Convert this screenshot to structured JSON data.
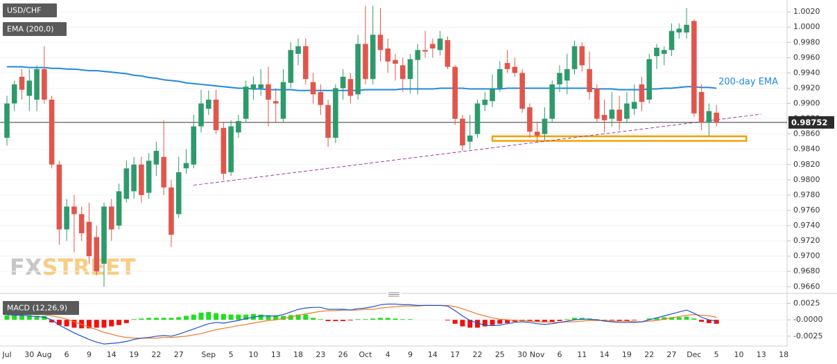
{
  "chart_data": {
    "type": "candlestick",
    "title": "USD/CHF",
    "categories": [
      "Jul",
      null,
      null,
      "30",
      null,
      "Aug",
      null,
      null,
      "6",
      null,
      null,
      "9",
      null,
      null,
      "14",
      null,
      null,
      "19",
      null,
      null,
      "22",
      null,
      null,
      "27",
      null,
      null,
      null,
      "Sep",
      null,
      null,
      "5",
      null,
      null,
      "10",
      null,
      null,
      "13",
      null,
      null,
      "18",
      null,
      null,
      "23",
      null,
      null,
      "26",
      null,
      null,
      "Oct",
      null,
      null,
      "4",
      null,
      null,
      "9",
      null,
      null,
      "14",
      null,
      null,
      "17",
      null,
      null,
      "22",
      null,
      null,
      "25",
      null,
      null,
      "30",
      null,
      "Nov",
      null,
      null,
      "6",
      null,
      null,
      "11",
      null,
      null,
      "14",
      null,
      null,
      "19",
      null,
      null,
      "22",
      null,
      null,
      "27",
      null,
      null,
      "Dec",
      null,
      null,
      "5",
      null,
      null,
      "10",
      null,
      null,
      "13",
      null,
      null,
      "18"
    ],
    "open": [
      0.9855,
      0.99,
      0.9935,
      0.991,
      0.9905,
      0.9945,
      0.9905,
      0.982,
      0.9735,
      0.9765,
      0.9755,
      0.9745,
      0.9725,
      0.969,
      0.9765,
      0.974,
      0.9775,
      0.9785,
      0.982,
      0.9783,
      0.982,
      0.983,
      0.979,
      0.9755,
      0.9815,
      0.982,
      0.987,
      0.9893,
      0.9905,
      0.9868,
      0.981,
      0.9862,
      0.988,
      0.9918,
      0.992,
      0.9925,
      0.9903,
      0.988,
      0.9927,
      0.9965,
      0.9975,
      0.9928,
      0.9915,
      0.9898,
      0.9855,
      0.992,
      0.9932,
      0.9912,
      0.9978,
      0.9932,
      0.999,
      0.9972,
      0.9957,
      0.995,
      0.9932,
      0.9957,
      0.997,
      0.9978,
      0.997,
      0.9983,
      0.9948,
      0.988,
      0.985,
      0.986,
      0.9898,
      0.9903,
      0.992,
      0.9953,
      0.9948,
      0.994,
      0.9895,
      0.9863,
      0.986,
      0.988,
      0.9925,
      0.993,
      0.9945,
      0.9975,
      0.9945,
      0.992,
      0.9885,
      0.988,
      0.9892,
      0.988,
      0.9893,
      0.9925,
      0.9905,
      0.9962,
      0.9965,
      0.997,
      0.9993,
      0.9993,
      1.0008,
      0.9915,
      0.9875,
      0.9888,
      null,
      null,
      null,
      null,
      null,
      null,
      null,
      null,
      null
    ],
    "high": [
      0.991,
      0.993,
      0.9945,
      0.9945,
      0.995,
      0.9975,
      0.991,
      0.9825,
      0.9775,
      0.978,
      0.9765,
      0.977,
      0.974,
      0.977,
      0.9775,
      0.9795,
      0.9825,
      0.983,
      0.983,
      0.9835,
      0.985,
      0.9878,
      0.98,
      0.983,
      0.984,
      0.9885,
      0.9918,
      0.9917,
      0.9918,
      0.9875,
      0.9878,
      0.9885,
      0.993,
      0.9935,
      0.9945,
      0.9948,
      0.992,
      0.9945,
      0.998,
      0.9985,
      0.9985,
      0.994,
      0.9925,
      0.9905,
      0.9925,
      0.9945,
      0.994,
      0.999,
      1.0028,
      1.0028,
      1.0025,
      0.9985,
      0.9965,
      0.996,
      0.9965,
      0.9978,
      0.9995,
      0.9985,
      0.9995,
      0.9988,
      0.995,
      0.9885,
      0.9885,
      0.9905,
      0.9915,
      0.9938,
      0.9955,
      0.997,
      0.996,
      0.9945,
      0.99,
      0.9875,
      0.9895,
      0.993,
      0.995,
      0.9965,
      0.9982,
      0.998,
      0.9968,
      0.9925,
      0.9905,
      0.9915,
      0.991,
      0.9915,
      0.9925,
      0.9935,
      0.9965,
      0.9978,
      0.9975,
      1.0005,
      1.0005,
      1.0025,
      1.001,
      0.9925,
      0.99,
      0.9898,
      null,
      null,
      null,
      null,
      null,
      null,
      null,
      null,
      null
    ],
    "low": [
      0.9845,
      0.989,
      0.9905,
      0.989,
      0.989,
      0.99,
      0.9815,
      0.9715,
      0.972,
      0.9705,
      0.972,
      0.969,
      0.9675,
      0.966,
      0.972,
      0.9735,
      0.977,
      0.9775,
      0.977,
      0.9775,
      0.9805,
      0.978,
      0.9712,
      0.975,
      0.9808,
      0.9815,
      0.9862,
      0.9885,
      0.986,
      0.98,
      0.9805,
      0.9855,
      0.9875,
      0.9905,
      0.991,
      0.987,
      0.9875,
      0.9875,
      0.992,
      0.995,
      0.9925,
      0.99,
      0.9885,
      0.9843,
      0.9848,
      0.9905,
      0.99,
      0.9905,
      0.9925,
      0.9925,
      0.9955,
      0.994,
      0.993,
      0.9915,
      0.9913,
      0.9912,
      0.996,
      0.996,
      0.9963,
      0.9945,
      0.9872,
      0.9838,
      0.984,
      0.9855,
      0.989,
      0.9895,
      0.9915,
      0.994,
      0.9935,
      0.9888,
      0.9855,
      0.985,
      0.9852,
      0.9875,
      0.9915,
      0.9912,
      0.9938,
      0.9942,
      0.9905,
      0.9875,
      0.9862,
      0.987,
      0.9865,
      0.9875,
      0.9885,
      0.989,
      0.99,
      0.9945,
      0.995,
      0.9962,
      0.9985,
      0.9985,
      0.9882,
      0.9865,
      0.9858,
      0.987,
      null,
      null,
      null,
      null,
      null,
      null,
      null,
      null,
      null
    ],
    "close": [
      0.99,
      0.9925,
      0.9918,
      0.993,
      0.9945,
      0.9905,
      0.982,
      0.9735,
      0.9765,
      0.9755,
      0.973,
      0.97,
      0.968,
      0.9765,
      0.9735,
      0.9785,
      0.9815,
      0.982,
      0.978,
      0.9825,
      0.9838,
      0.979,
      0.9728,
      0.981,
      0.9822,
      0.987,
      0.99,
      0.9905,
      0.9865,
      0.9808,
      0.987,
      0.9877,
      0.9922,
      0.9925,
      0.9925,
      0.9905,
      0.99,
      0.9928,
      0.997,
      0.9975,
      0.9932,
      0.9912,
      0.9898,
      0.9855,
      0.992,
      0.9935,
      0.991,
      0.9978,
      0.9932,
      0.999,
      0.997,
      0.9955,
      0.9952,
      0.9932,
      0.9958,
      0.997,
      0.9968,
      0.9972,
      0.9985,
      0.9948,
      0.988,
      0.9845,
      0.9858,
      0.99,
      0.9905,
      0.992,
      0.9945,
      0.9945,
      0.994,
      0.9893,
      0.9863,
      0.9858,
      0.988,
      0.9925,
      0.994,
      0.9945,
      0.9975,
      0.995,
      0.9915,
      0.988,
      0.9878,
      0.9892,
      0.9877,
      0.99,
      0.9902,
      0.9902,
      0.9958,
      0.9973,
      0.997,
      0.9995,
      0.9998,
      1.0003,
      0.9887,
      0.9875,
      0.989,
      0.9875,
      null,
      null,
      null,
      null,
      null,
      null,
      null,
      null,
      null
    ],
    "up_color": "#2e9a6c",
    "down_color": "#e0564c",
    "ema": {
      "name": "EMA (200,0)",
      "annotation": "200-day EMA",
      "color": "#1e88e5",
      "values": [
        0.9948,
        0.9948,
        0.9948,
        0.9947,
        0.9947,
        0.9947,
        0.9946,
        0.9946,
        0.9945,
        0.9945,
        0.9944,
        0.9943,
        0.9943,
        0.9942,
        0.9941,
        0.994,
        0.9939,
        0.9937,
        0.9936,
        0.9934,
        0.9933,
        0.9931,
        0.993,
        0.9929,
        0.9927,
        0.9926,
        0.9925,
        0.9924,
        0.9923,
        0.9922,
        0.9921,
        0.992,
        0.992,
        0.9919,
        0.9919,
        0.9918,
        0.9918,
        0.9918,
        0.9918,
        0.9917,
        0.9917,
        0.9917,
        0.9917,
        0.9917,
        0.9917,
        0.9917,
        0.9917,
        0.9917,
        0.9918,
        0.9918,
        0.9918,
        0.9918,
        0.9918,
        0.9919,
        0.9919,
        0.9919,
        0.9919,
        0.9919,
        0.992,
        0.992,
        0.992,
        0.992,
        0.9919,
        0.9919,
        0.9919,
        0.9919,
        0.9919,
        0.992,
        0.992,
        0.992,
        0.992,
        0.992,
        0.992,
        0.992,
        0.992,
        0.992,
        0.992,
        0.992,
        0.992,
        0.9919,
        0.9919,
        0.9919,
        0.9918,
        0.9918,
        0.9918,
        0.9918,
        0.9919,
        0.9919,
        0.992,
        0.992,
        0.9921,
        0.9922,
        0.9922,
        0.9921,
        0.9921,
        0.992,
        null,
        null,
        null,
        null,
        null,
        null,
        null,
        null,
        null
      ]
    },
    "current_price": 0.98752,
    "trendline": {
      "color": "#a03ca0",
      "x": [
        25,
        101
      ],
      "y": [
        0.9793,
        0.9886
      ]
    },
    "support_zone": {
      "color": "#f5a000",
      "from": 65,
      "to": 99,
      "low": 0.9851,
      "high": 0.9857
    },
    "watermark": [
      "FX",
      "STREET"
    ],
    "ylim": [
      0.9653,
      1.0031
    ],
    "yticks": [
      {
        "value": 0.966,
        "label": "0.9660"
      },
      {
        "value": 0.968,
        "label": "0.9680"
      },
      {
        "value": 0.97,
        "label": "0.9700"
      },
      {
        "value": 0.972,
        "label": "0.9720"
      },
      {
        "value": 0.974,
        "label": "0.9740"
      },
      {
        "value": 0.976,
        "label": "0.9760"
      },
      {
        "value": 0.978,
        "label": "0.9780"
      },
      {
        "value": 0.98,
        "label": "0.9800"
      },
      {
        "value": 0.982,
        "label": "0.9820"
      },
      {
        "value": 0.984,
        "label": "0.9840"
      },
      {
        "value": 0.986,
        "label": "0.9860"
      },
      {
        "value": 0.988,
        "label": "0.9880"
      },
      {
        "value": 0.99,
        "label": "0.9900"
      },
      {
        "value": 0.992,
        "label": "0.9920"
      },
      {
        "value": 0.994,
        "label": "0.9940"
      },
      {
        "value": 0.996,
        "label": "0.9960"
      },
      {
        "value": 0.998,
        "label": "0.9980"
      },
      {
        "value": 1,
        "label": "1.0000"
      },
      {
        "value": 1.002,
        "label": "1.0020"
      }
    ],
    "macd": {
      "type": "macd",
      "title": "MACD (12,26,9)",
      "ylim": [
        -0.004,
        0.0034
      ],
      "yticks": [
        {
          "value": 0.0025,
          "label": "0.0025"
        },
        {
          "value": 0,
          "label": "-0.0000"
        },
        {
          "value": -0.0025,
          "label": "-0.0025"
        }
      ],
      "macd_line": {
        "color": "#2050d0",
        "values": [
          0.0008,
          0.0007,
          0.0007,
          0.0006,
          0.0005,
          0.0004,
          0,
          -0.0008,
          -0.0014,
          -0.002,
          -0.0025,
          -0.003,
          -0.0034,
          -0.0037,
          -0.0036,
          -0.0035,
          -0.0033,
          -0.003,
          -0.0028,
          -0.0027,
          -0.0025,
          -0.0024,
          -0.0025,
          -0.0022,
          -0.0018,
          -0.0014,
          -0.001,
          -0.0006,
          -0.0004,
          -0.0005,
          -0.0003,
          -0.0001,
          0.0002,
          0.0004,
          0.0006,
          0.0006,
          0.0006,
          0.0008,
          0.0012,
          0.0016,
          0.0018,
          0.0019,
          0.0019,
          0.0016,
          0.0016,
          0.0016,
          0.0015,
          0.0017,
          0.0018,
          0.002,
          0.0023,
          0.0024,
          0.0024,
          0.0023,
          0.0023,
          0.0022,
          0.0022,
          0.0022,
          0.0022,
          0.0021,
          0.0014,
          0.0006,
          -0.0001,
          -0.0005,
          -0.0008,
          -0.0009,
          -0.0008,
          -0.0006,
          -0.0004,
          -0.0003,
          -0.0004,
          -0.0006,
          -0.0007,
          -0.0006,
          -0.0004,
          -0.0002,
          0,
          0.0001,
          0.0001,
          0,
          -0.0002,
          -0.0003,
          -0.0004,
          -0.0004,
          -0.0004,
          -0.0003,
          0,
          0.0003,
          0.0006,
          0.0009,
          0.0012,
          0.0015,
          0.001,
          0.0004,
          0,
          -0.0002,
          null,
          null,
          null,
          null,
          null,
          null,
          null,
          null,
          null
        ]
      },
      "signal_line": {
        "color": "#f07820",
        "values": [
          0.001,
          0.001,
          0.0009,
          0.0009,
          0.0008,
          0.0008,
          0.0006,
          0.0004,
          0.0001,
          -0.0003,
          -0.0007,
          -0.0011,
          -0.0015,
          -0.0019,
          -0.0022,
          -0.0025,
          -0.0027,
          -0.0028,
          -0.0028,
          -0.0028,
          -0.0028,
          -0.0027,
          -0.0027,
          -0.0026,
          -0.0025,
          -0.0023,
          -0.0021,
          -0.0018,
          -0.0015,
          -0.0013,
          -0.0011,
          -0.0009,
          -0.0007,
          -0.0005,
          -0.0003,
          -0.0001,
          0,
          0.0002,
          0.0004,
          0.0007,
          0.0009,
          0.0011,
          0.0013,
          0.0014,
          0.0014,
          0.0015,
          0.0015,
          0.0015,
          0.0016,
          0.0016,
          0.0018,
          0.0019,
          0.002,
          0.0021,
          0.0021,
          0.0021,
          0.0022,
          0.0022,
          0.0022,
          0.0022,
          0.002,
          0.0017,
          0.0013,
          0.0009,
          0.0006,
          0.0003,
          0.0001,
          0,
          -0.0001,
          -0.0001,
          -0.0002,
          -0.0003,
          -0.0003,
          -0.0004,
          -0.0004,
          -0.0003,
          -0.0003,
          -0.0002,
          -0.0001,
          -0.0001,
          -0.0001,
          -0.0002,
          -0.0002,
          -0.0002,
          -0.0003,
          -0.0003,
          -0.0002,
          -0.0001,
          0.0001,
          0.0003,
          0.0005,
          0.0007,
          0.0008,
          0.0007,
          0.0006,
          0.0004,
          null,
          null,
          null,
          null,
          null,
          null,
          null,
          null,
          null
        ]
      },
      "histogram": {
        "up_color": "#22dd22",
        "down_color": "#ee1111",
        "values": [
          0.0007,
          0.0007,
          0.0007,
          0.0007,
          0.0006,
          0.0006,
          -0.0004,
          -0.0008,
          -0.001,
          -0.0012,
          -0.0013,
          -0.0013,
          -0.0012,
          -0.0012,
          -0.001,
          -0.0008,
          -0.0005,
          0.0001,
          0.0002,
          0.0003,
          0.0003,
          0.0003,
          0.0003,
          0.0004,
          0.0006,
          0.0008,
          0.0011,
          0.0012,
          0.001,
          0.0009,
          0.0008,
          0.0008,
          0.0008,
          0.0009,
          0.0008,
          0.0007,
          0.0006,
          0.0006,
          0.0007,
          0.0008,
          0.0008,
          0.0003,
          0.0001,
          -0.0002,
          -0.0002,
          -0.0002,
          -0.0001,
          0.0001,
          0.0001,
          0.0002,
          0.0003,
          0.0003,
          0.0002,
          0.0001,
          0.0001,
          0,
          0,
          0,
          0,
          -0.0001,
          -0.0006,
          -0.001,
          -0.0012,
          -0.0012,
          -0.001,
          -0.0008,
          -0.0006,
          -0.0005,
          -0.0003,
          -0.0002,
          -0.0002,
          -0.0003,
          -0.0004,
          -0.0003,
          -0.0002,
          0.0001,
          0.0003,
          0.0003,
          0.0002,
          0.0001,
          -0.0001,
          -0.0001,
          -0.0002,
          -0.0002,
          -0.0001,
          0,
          0.0002,
          0.0003,
          0.0004,
          0.0004,
          0.0004,
          0.0005,
          0.0002,
          -0.0003,
          -0.0005,
          -0.0006,
          null,
          null,
          null,
          null,
          null,
          null,
          null,
          null,
          null
        ]
      }
    }
  }
}
